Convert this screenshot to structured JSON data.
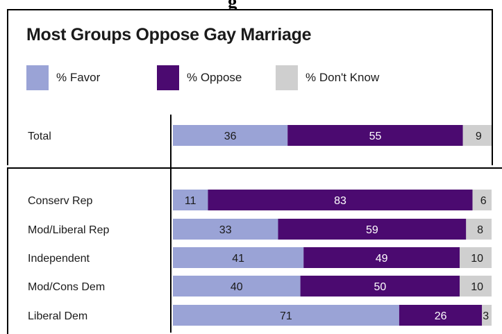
{
  "heading_fragment": "g",
  "colors": {
    "favor": "#9aa3d6",
    "oppose": "#4b0a70",
    "dont_know": "#cfcfcf"
  },
  "chart_data": {
    "type": "bar",
    "orientation": "horizontal-stacked",
    "title": "Most Groups Oppose Gay Marriage",
    "legend": [
      "% Favor",
      "% Oppose",
      "% Don't Know"
    ],
    "legend_placement": "top",
    "xlim": [
      0,
      100
    ],
    "groups": [
      {
        "rows": [
          {
            "label": "Total",
            "values": [
              36,
              55,
              9
            ]
          }
        ]
      },
      {
        "rows": [
          {
            "label": "Conserv Rep",
            "values": [
              11,
              83,
              6
            ]
          },
          {
            "label": "Mod/Liberal Rep",
            "values": [
              33,
              59,
              8
            ]
          },
          {
            "label": "Independent",
            "values": [
              41,
              49,
              10
            ]
          },
          {
            "label": "Mod/Cons Dem",
            "values": [
              40,
              50,
              10
            ]
          },
          {
            "label": "Liberal Dem",
            "values": [
              71,
              26,
              3
            ]
          }
        ]
      }
    ]
  }
}
